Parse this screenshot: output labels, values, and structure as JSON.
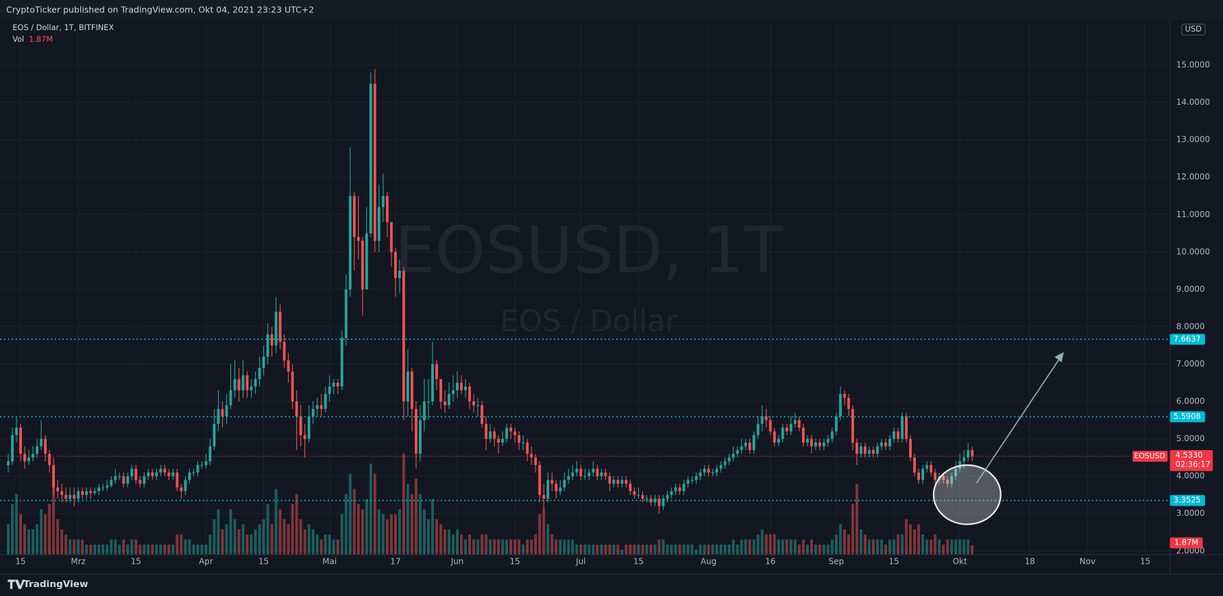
{
  "header": {
    "publisher": "CryptoTicker published on TradingView.com, Okt 04, 2021 23:23 UTC+2"
  },
  "chart_data": {
    "type": "candlestick",
    "title": "EOS / Dollar, 1T, BITFINEX",
    "watermark": "EOSUSD, 1T",
    "watermark_subtitle": "EOS / Dollar",
    "currency": "USD",
    "symbol": "EOSUSD",
    "countdown": "02:36:17",
    "up_color": "#26a69a",
    "down_color": "#ef5350",
    "level_color": "#00bcd4",
    "grid": true,
    "open": [
      4.3,
      4.4,
      5.1,
      5.3,
      4.6,
      4.4,
      4.5,
      4.6,
      4.8,
      5.0,
      4.6,
      4.3,
      3.7,
      3.6,
      3.5,
      3.4,
      3.5,
      3.4,
      3.6,
      3.5,
      3.6,
      3.55,
      3.6,
      3.7,
      3.7,
      3.75,
      3.9,
      4.0,
      4.0,
      3.8,
      4.0,
      4.2,
      3.9,
      3.8,
      4.0,
      4.1,
      4.0,
      4.1,
      4.2,
      4.1,
      4.0,
      4.1,
      3.7,
      3.6,
      3.9,
      4.1,
      4.1,
      4.3,
      4.3,
      4.4,
      4.8,
      5.4,
      5.8,
      5.6,
      5.9,
      6.3,
      6.6,
      6.3,
      6.7,
      6.3,
      6.4,
      6.6,
      6.9,
      7.2,
      7.8,
      7.5,
      8.4,
      7.6,
      7.1,
      6.8,
      6.0,
      5.6,
      5.1,
      5.0,
      5.6,
      5.8,
      5.9,
      5.8,
      6.2,
      6.4,
      6.5,
      6.4,
      7.7,
      9.0,
      11.5,
      10.4,
      10.3,
      9.0,
      10.5,
      14.5,
      10.3,
      11.2,
      11.5,
      10.8,
      10.0,
      9.3,
      9.5,
      6.0,
      6.8,
      5.8,
      4.6,
      5.5,
      6.0,
      6.0,
      7.0,
      6.6,
      6.0,
      5.9,
      6.2,
      6.3,
      6.5,
      6.3,
      6.4,
      6.0,
      5.9,
      5.9,
      5.4,
      5.0,
      5.2,
      5.0,
      4.9,
      5.0,
      5.3,
      5.2,
      5.1,
      4.9,
      4.9,
      4.6,
      4.5,
      4.3,
      3.5,
      3.4,
      3.9,
      3.8,
      3.6,
      3.7,
      3.9,
      4.0,
      4.1,
      4.2,
      4.0,
      4.0,
      4.1,
      4.2,
      4.0,
      4.1,
      4.0,
      3.8,
      3.9,
      3.8,
      3.9,
      3.8,
      3.6,
      3.5,
      3.5,
      3.4,
      3.4,
      3.3,
      3.4,
      3.2,
      3.4,
      3.5,
      3.6,
      3.7,
      3.6,
      3.8,
      3.9,
      3.9,
      4.0,
      4.1,
      4.2,
      4.1,
      4.1,
      4.2,
      4.3,
      4.4,
      4.5,
      4.6,
      4.7,
      4.8,
      4.9,
      4.7,
      5.1,
      5.4,
      5.6,
      5.5,
      5.2,
      4.9,
      5.0,
      5.3,
      5.2,
      5.4,
      5.5,
      5.3,
      4.9,
      5.0,
      4.8,
      4.9,
      4.8,
      4.9,
      5.0,
      5.2,
      5.6,
      6.2,
      6.1,
      5.8,
      4.9,
      4.6,
      4.8,
      4.6,
      4.7,
      4.6,
      4.8,
      4.9,
      4.8,
      5.0,
      5.2,
      5.0,
      5.6,
      5.0,
      4.5,
      4.1,
      3.9,
      4.2,
      4.3,
      4.1,
      3.9,
      4.0,
      3.9,
      3.8,
      4.0,
      4.2,
      4.4,
      4.5,
      4.7
    ],
    "high": [
      4.6,
      5.3,
      5.6,
      5.4,
      4.8,
      4.7,
      4.8,
      5.0,
      5.5,
      5.1,
      4.7,
      4.5,
      3.9,
      3.8,
      3.7,
      3.7,
      3.7,
      3.7,
      3.7,
      3.7,
      3.7,
      3.7,
      3.8,
      3.8,
      3.9,
      4.0,
      4.2,
      4.1,
      4.1,
      4.1,
      4.3,
      4.3,
      4.0,
      4.1,
      4.2,
      4.2,
      4.2,
      4.3,
      4.3,
      4.2,
      4.2,
      4.2,
      3.8,
      4.0,
      4.2,
      4.2,
      4.4,
      4.4,
      4.6,
      5.0,
      5.8,
      6.3,
      6.0,
      6.2,
      7.0,
      7.1,
      6.9,
      7.1,
      6.8,
      6.6,
      6.8,
      7.2,
      7.5,
      8.1,
      8.0,
      8.8,
      8.6,
      7.8,
      7.3,
      7.0,
      6.3,
      5.9,
      5.4,
      5.9,
      6.0,
      6.1,
      6.2,
      6.4,
      6.7,
      6.6,
      6.6,
      7.9,
      9.4,
      12.8,
      11.6,
      11.5,
      10.4,
      11.2,
      14.8,
      14.9,
      11.8,
      12.1,
      11.6,
      10.8,
      10.1,
      9.8,
      9.6,
      7.4,
      6.9,
      6.0,
      5.9,
      6.6,
      6.6,
      7.6,
      7.1,
      6.6,
      6.3,
      6.5,
      6.7,
      6.8,
      6.7,
      6.6,
      6.5,
      6.2,
      6.1,
      6.0,
      5.6,
      5.4,
      5.3,
      5.1,
      5.2,
      5.4,
      5.4,
      5.3,
      5.2,
      5.1,
      5.0,
      4.8,
      4.6,
      4.4,
      3.8,
      4.1,
      4.1,
      3.9,
      3.9,
      4.1,
      4.2,
      4.3,
      4.4,
      4.3,
      4.2,
      4.2,
      4.4,
      4.3,
      4.2,
      4.2,
      4.1,
      4.0,
      4.0,
      4.0,
      4.0,
      3.9,
      3.7,
      3.7,
      3.6,
      3.5,
      3.5,
      3.5,
      3.5,
      3.5,
      3.6,
      3.7,
      3.8,
      3.8,
      3.9,
      4.0,
      4.0,
      4.1,
      4.2,
      4.3,
      4.3,
      4.2,
      4.3,
      4.4,
      4.5,
      4.6,
      4.8,
      4.8,
      5.0,
      5.0,
      5.0,
      5.2,
      5.6,
      5.9,
      5.8,
      5.6,
      5.3,
      5.1,
      5.4,
      5.4,
      5.6,
      5.7,
      5.6,
      5.4,
      5.1,
      5.1,
      5.0,
      5.0,
      5.0,
      5.1,
      5.3,
      5.7,
      6.4,
      6.3,
      6.2,
      5.9,
      5.0,
      4.9,
      4.9,
      4.8,
      4.8,
      4.9,
      5.0,
      5.0,
      5.1,
      5.3,
      5.3,
      5.7,
      5.7,
      5.1,
      4.6,
      4.2,
      4.3,
      4.4,
      4.4,
      4.2,
      4.1,
      4.1,
      4.0,
      4.1,
      4.4,
      4.6,
      4.7,
      4.9,
      4.8
    ],
    "low": [
      4.1,
      4.3,
      4.9,
      4.4,
      4.2,
      4.3,
      4.4,
      4.5,
      4.7,
      4.4,
      4.1,
      3.5,
      3.4,
      3.3,
      3.3,
      3.3,
      3.2,
      3.3,
      3.4,
      3.4,
      3.4,
      3.5,
      3.5,
      3.6,
      3.6,
      3.7,
      3.8,
      3.9,
      3.7,
      3.7,
      3.9,
      3.8,
      3.7,
      3.7,
      3.9,
      3.9,
      3.9,
      4.0,
      4.0,
      3.9,
      3.9,
      3.6,
      3.4,
      3.5,
      3.8,
      4.0,
      4.0,
      4.2,
      4.2,
      4.3,
      4.7,
      5.2,
      5.3,
      5.4,
      5.8,
      6.1,
      6.0,
      6.1,
      6.1,
      6.1,
      6.2,
      6.4,
      6.7,
      7.0,
      7.2,
      7.3,
      7.4,
      6.9,
      6.5,
      5.8,
      4.7,
      4.8,
      4.5,
      4.9,
      5.4,
      5.6,
      5.6,
      5.7,
      6.0,
      6.2,
      6.2,
      6.3,
      7.5,
      8.8,
      9.5,
      9.8,
      8.3,
      9.0,
      10.4,
      10.0,
      10.0,
      10.8,
      10.4,
      9.6,
      8.8,
      8.9,
      5.5,
      5.6,
      5.2,
      4.2,
      4.4,
      5.2,
      5.5,
      5.9,
      6.3,
      5.8,
      5.7,
      5.8,
      6.0,
      6.1,
      6.2,
      6.1,
      5.8,
      5.7,
      5.6,
      5.3,
      4.7,
      4.9,
      4.8,
      4.6,
      4.8,
      4.9,
      5.0,
      4.9,
      4.7,
      4.7,
      4.4,
      4.3,
      4.1,
      3.3,
      3.1,
      3.3,
      3.6,
      3.4,
      3.5,
      3.6,
      3.8,
      3.9,
      4.0,
      3.9,
      3.9,
      3.9,
      4.0,
      3.9,
      3.9,
      3.9,
      3.6,
      3.7,
      3.7,
      3.7,
      3.7,
      3.5,
      3.4,
      3.4,
      3.3,
      3.3,
      3.2,
      3.2,
      3.0,
      3.1,
      3.3,
      3.4,
      3.5,
      3.5,
      3.5,
      3.7,
      3.8,
      3.8,
      3.9,
      4.0,
      4.0,
      4.0,
      4.0,
      4.1,
      4.2,
      4.3,
      4.4,
      4.5,
      4.6,
      4.7,
      4.6,
      4.6,
      5.0,
      5.2,
      5.3,
      5.1,
      4.8,
      4.8,
      4.9,
      5.1,
      5.1,
      5.3,
      5.2,
      4.8,
      4.8,
      4.6,
      4.7,
      4.7,
      4.7,
      4.8,
      4.9,
      5.1,
      5.5,
      5.9,
      5.6,
      4.7,
      4.3,
      4.5,
      4.5,
      4.5,
      4.5,
      4.5,
      4.7,
      4.7,
      4.7,
      4.9,
      4.9,
      4.9,
      4.9,
      4.4,
      4.0,
      3.8,
      3.8,
      4.1,
      4.0,
      3.8,
      3.8,
      3.8,
      3.7,
      3.7,
      3.9,
      4.1,
      4.2,
      4.4,
      4.4
    ],
    "close": [
      4.4,
      5.1,
      5.3,
      4.6,
      4.4,
      4.5,
      4.6,
      4.8,
      5.0,
      4.6,
      4.3,
      3.7,
      3.6,
      3.5,
      3.4,
      3.5,
      3.4,
      3.6,
      3.5,
      3.6,
      3.55,
      3.6,
      3.7,
      3.7,
      3.75,
      3.9,
      4.0,
      4.0,
      3.8,
      4.0,
      4.2,
      3.9,
      3.8,
      4.0,
      4.1,
      4.0,
      4.1,
      4.2,
      4.1,
      4.0,
      4.1,
      3.7,
      3.6,
      3.9,
      4.1,
      4.1,
      4.3,
      4.3,
      4.4,
      4.8,
      5.4,
      5.8,
      5.6,
      5.9,
      6.3,
      6.6,
      6.3,
      6.7,
      6.3,
      6.4,
      6.6,
      6.9,
      7.2,
      7.8,
      7.5,
      8.4,
      7.6,
      7.1,
      6.8,
      6.0,
      5.6,
      5.1,
      5.0,
      5.6,
      5.8,
      5.9,
      5.8,
      6.2,
      6.4,
      6.5,
      6.4,
      7.7,
      9.0,
      11.5,
      10.4,
      10.3,
      9.0,
      10.5,
      14.5,
      10.3,
      11.2,
      11.5,
      10.8,
      10.0,
      9.3,
      9.5,
      6.0,
      6.8,
      5.8,
      4.6,
      5.5,
      6.0,
      6.0,
      7.0,
      6.6,
      6.0,
      5.9,
      6.2,
      6.3,
      6.5,
      6.3,
      6.4,
      6.0,
      5.9,
      5.9,
      5.4,
      5.0,
      5.2,
      5.0,
      4.9,
      5.0,
      5.3,
      5.2,
      5.1,
      4.9,
      4.9,
      4.6,
      4.5,
      4.3,
      3.5,
      3.4,
      3.9,
      3.8,
      3.6,
      3.7,
      3.9,
      4.0,
      4.1,
      4.2,
      4.0,
      4.0,
      4.1,
      4.2,
      4.0,
      4.1,
      4.0,
      3.8,
      3.9,
      3.8,
      3.9,
      3.8,
      3.6,
      3.5,
      3.5,
      3.4,
      3.4,
      3.3,
      3.4,
      3.2,
      3.4,
      3.5,
      3.6,
      3.7,
      3.6,
      3.8,
      3.9,
      3.9,
      4.0,
      4.1,
      4.2,
      4.1,
      4.1,
      4.2,
      4.3,
      4.4,
      4.5,
      4.6,
      4.7,
      4.8,
      4.9,
      4.7,
      5.1,
      5.4,
      5.6,
      5.5,
      5.2,
      4.9,
      5.0,
      5.3,
      5.2,
      5.4,
      5.5,
      5.3,
      4.9,
      5.0,
      4.8,
      4.9,
      4.8,
      4.9,
      5.0,
      5.2,
      5.6,
      6.2,
      6.1,
      5.8,
      4.9,
      4.6,
      4.8,
      4.6,
      4.7,
      4.6,
      4.8,
      4.9,
      4.8,
      5.0,
      5.2,
      5.0,
      5.6,
      5.0,
      4.5,
      4.1,
      3.9,
      4.2,
      4.3,
      4.1,
      3.9,
      4.0,
      3.9,
      3.8,
      4.0,
      4.2,
      4.4,
      4.5,
      4.7,
      4.533
    ],
    "volume_name": "Vol",
    "volume": [
      6,
      10,
      12,
      8,
      6,
      5,
      5,
      6,
      9,
      8,
      10,
      14,
      7,
      5,
      4,
      3,
      3,
      3,
      3,
      2,
      2,
      2,
      2,
      2,
      2,
      3,
      3,
      2,
      3,
      2,
      3,
      3,
      2,
      2,
      2,
      2,
      2,
      2,
      2,
      2,
      2,
      4,
      4,
      3,
      3,
      2,
      2,
      2,
      2,
      4,
      7,
      9,
      5,
      6,
      9,
      7,
      5,
      6,
      4,
      4,
      5,
      6,
      7,
      10,
      6,
      13,
      9,
      7,
      6,
      10,
      12,
      7,
      5,
      6,
      5,
      4,
      3,
      4,
      4,
      3,
      3,
      8,
      12,
      16,
      13,
      10,
      9,
      11,
      18,
      16,
      9,
      8,
      7,
      8,
      8,
      9,
      20,
      14,
      12,
      15,
      12,
      9,
      7,
      11,
      7,
      6,
      5,
      5,
      4,
      5,
      4,
      3,
      4,
      3,
      3,
      4,
      4,
      3,
      3,
      3,
      3,
      3,
      3,
      3,
      3,
      2,
      3,
      3,
      4,
      8,
      9,
      6,
      4,
      3,
      3,
      3,
      3,
      3,
      2,
      2,
      2,
      2,
      2,
      2,
      2,
      2,
      2,
      2,
      2,
      1,
      2,
      2,
      2,
      2,
      2,
      2,
      2,
      2,
      3,
      3,
      2,
      2,
      2,
      2,
      2,
      2,
      2,
      1,
      2,
      2,
      2,
      2,
      2,
      2,
      2,
      2,
      3,
      2,
      3,
      3,
      3,
      3,
      4,
      5,
      4,
      4,
      4,
      3,
      3,
      3,
      3,
      3,
      2,
      3,
      2,
      3,
      2,
      2,
      2,
      2,
      3,
      4,
      6,
      5,
      4,
      10,
      14,
      5,
      4,
      3,
      3,
      3,
      3,
      2,
      3,
      3,
      4,
      4,
      7,
      6,
      5,
      6,
      4,
      3,
      3,
      4,
      3,
      2,
      3,
      3,
      3,
      3,
      3,
      3,
      1.87
    ],
    "volume_last_label": "1.87M",
    "xlim": [
      -2,
      282
    ],
    "xticks": [
      {
        "value": 3,
        "label": "15"
      },
      {
        "value": 17,
        "label": "Mrz"
      },
      {
        "value": 31,
        "label": "15"
      },
      {
        "value": 48,
        "label": "Apr"
      },
      {
        "value": 62,
        "label": "15"
      },
      {
        "value": 78,
        "label": "Mai"
      },
      {
        "value": 94,
        "label": "17"
      },
      {
        "value": 109,
        "label": "Jun"
      },
      {
        "value": 123,
        "label": "15"
      },
      {
        "value": 139,
        "label": "Jul"
      },
      {
        "value": 153,
        "label": "15"
      },
      {
        "value": 170,
        "label": "Aug"
      },
      {
        "value": 185,
        "label": "16"
      },
      {
        "value": 201,
        "label": "Sep"
      },
      {
        "value": 215,
        "label": "15"
      },
      {
        "value": 231,
        "label": "Okt"
      },
      {
        "value": 248,
        "label": "18"
      },
      {
        "value": 262,
        "label": "Nov"
      },
      {
        "value": 276,
        "label": "15"
      }
    ],
    "ylim": [
      1.9,
      16.2
    ],
    "yticks": [
      {
        "value": 2,
        "label": "2.0000"
      },
      {
        "value": 3,
        "label": "3.0000"
      },
      {
        "value": 4,
        "label": "4.0000"
      },
      {
        "value": 5,
        "label": "5.0000"
      },
      {
        "value": 6,
        "label": "6.0000"
      },
      {
        "value": 7,
        "label": "7.0000"
      },
      {
        "value": 8,
        "label": "8.0000"
      },
      {
        "value": 9,
        "label": "9.0000"
      },
      {
        "value": 10,
        "label": "10.0000"
      },
      {
        "value": 11,
        "label": "11.0000"
      },
      {
        "value": 12,
        "label": "12.0000"
      },
      {
        "value": 13,
        "label": "13.0000"
      },
      {
        "value": 14,
        "label": "14.0000"
      },
      {
        "value": 15,
        "label": "15.0000"
      }
    ],
    "levels": [
      7.6637,
      5.5908,
      3.3525
    ],
    "last_price": {
      "value": 4.533,
      "label": "4.5330"
    }
  },
  "footer": {
    "brand": "TradingView"
  }
}
